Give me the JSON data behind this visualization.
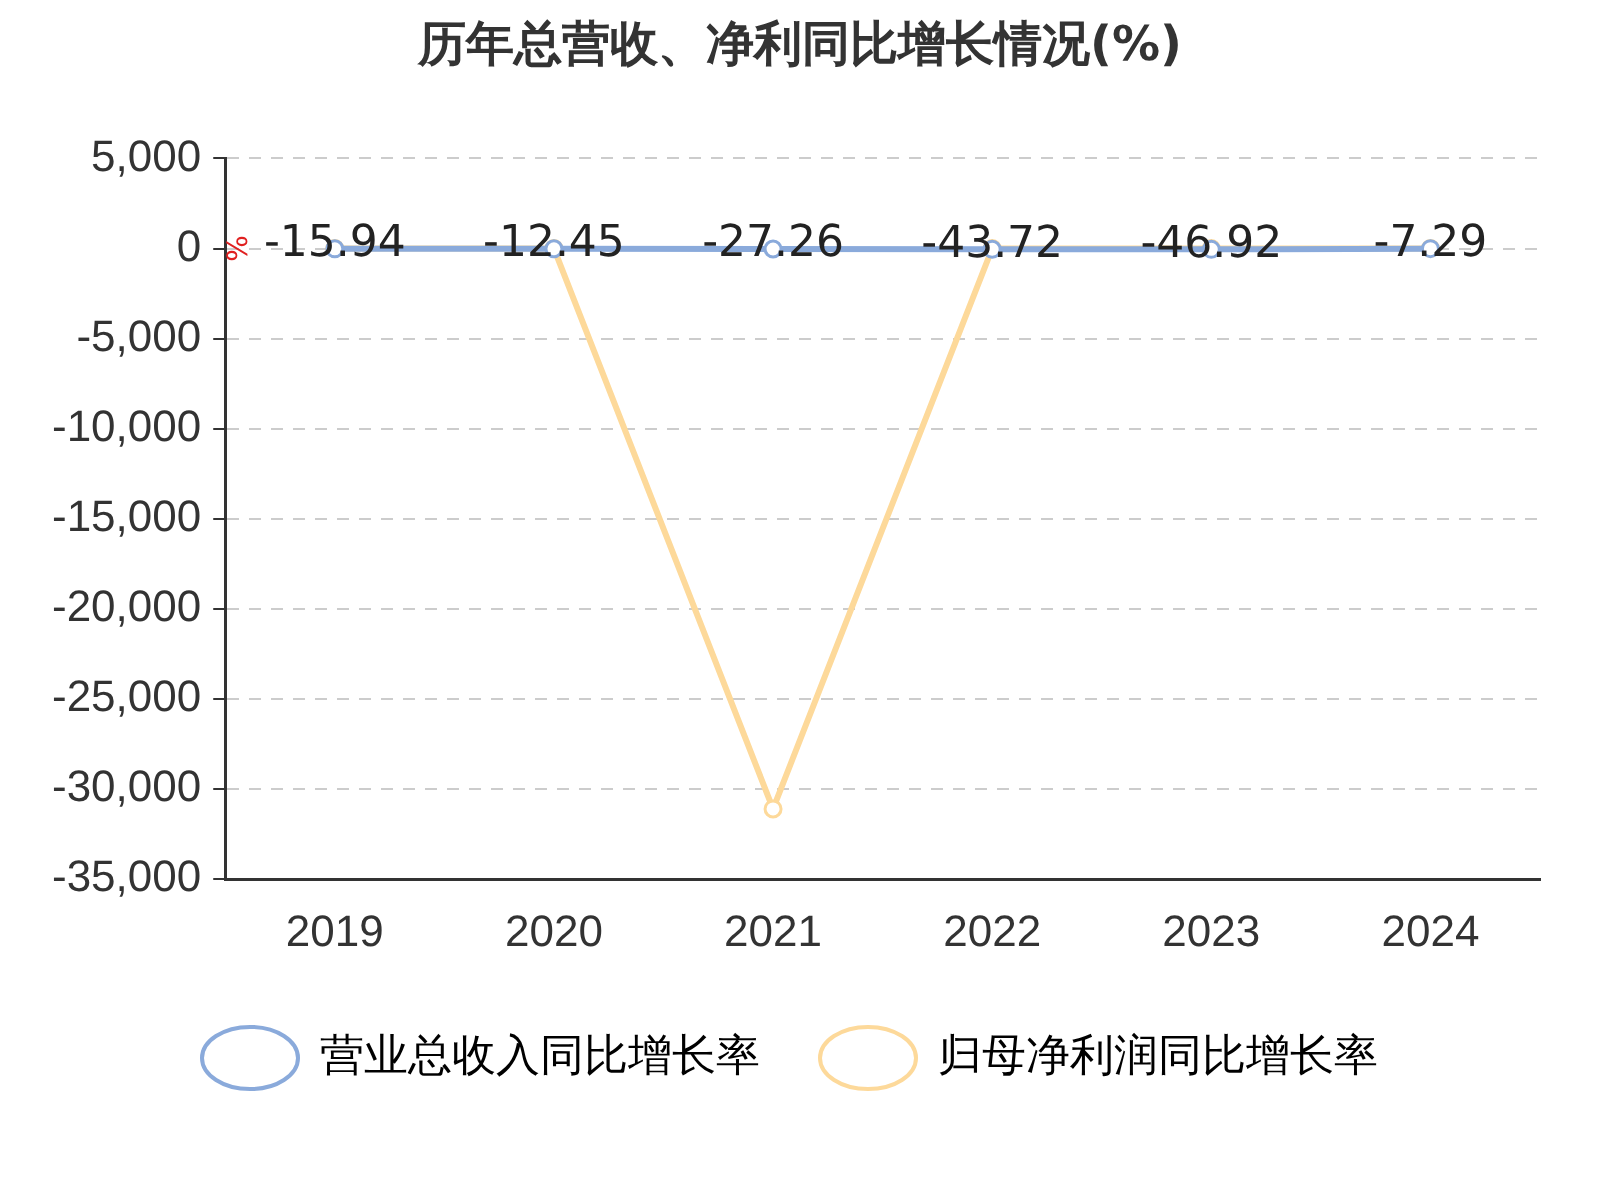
{
  "chart_data": {
    "type": "line",
    "title": "历年总营收、净利同比增长情况(%)",
    "ylabel": "%",
    "categories": [
      "2019",
      "2020",
      "2021",
      "2022",
      "2023",
      "2024"
    ],
    "series": [
      {
        "name": "营业总收入同比增长率",
        "color": "#8aaadb",
        "values": [
          -15.94,
          -12.45,
          -27.26,
          -43.72,
          -46.92,
          -7.29
        ],
        "value_labels": [
          "-15.94",
          "-12.45",
          "-27.26",
          "-43.72",
          "-46.92",
          "-7.29"
        ]
      },
      {
        "name": "归母净利润同比增长率",
        "color": "#fdd99a",
        "values": [
          0,
          0,
          -31100,
          0,
          0,
          0
        ]
      }
    ],
    "ylim": [
      -35000,
      5000
    ],
    "yticks": [
      {
        "value": 5000,
        "label": "5,000"
      },
      0,
      {
        "value": -5000,
        "label": "-5,000"
      },
      {
        "value": -10000,
        "label": "-10,000"
      },
      {
        "value": -15000,
        "label": "-15,000"
      },
      {
        "value": -20000,
        "label": "-20,000"
      },
      {
        "value": -25000,
        "label": "-25,000"
      },
      {
        "value": -30000,
        "label": "-30,000"
      },
      {
        "value": -35000,
        "label": "-35,000"
      }
    ],
    "grid": "y",
    "legend": "bottom",
    "marker": "circle",
    "line_style": "solid"
  }
}
